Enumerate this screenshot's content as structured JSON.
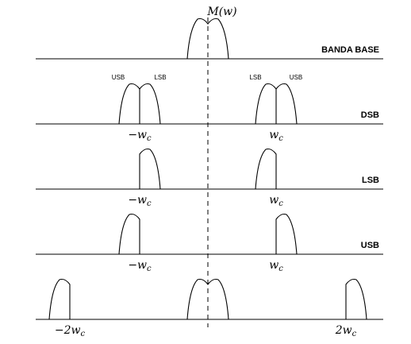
{
  "signal_label": "M(w)",
  "panels": [
    {
      "id": "baseband",
      "label": "BANDA BASE",
      "ticks": []
    },
    {
      "id": "dsb",
      "label": "DSB",
      "ticks": [
        "−w_c",
        "w_c"
      ],
      "sublabels_left": [
        "USB",
        "LSB"
      ],
      "sublabels_right": [
        "LSB",
        "USB"
      ]
    },
    {
      "id": "lsb",
      "label": "LSB",
      "ticks": [
        "−w_c",
        "w_c"
      ]
    },
    {
      "id": "usb",
      "label": "USB",
      "ticks": [
        "−w_c",
        "w_c"
      ]
    },
    {
      "id": "demod",
      "label": "",
      "ticks": [
        "−2w_c",
        "2w_c"
      ]
    }
  ]
}
